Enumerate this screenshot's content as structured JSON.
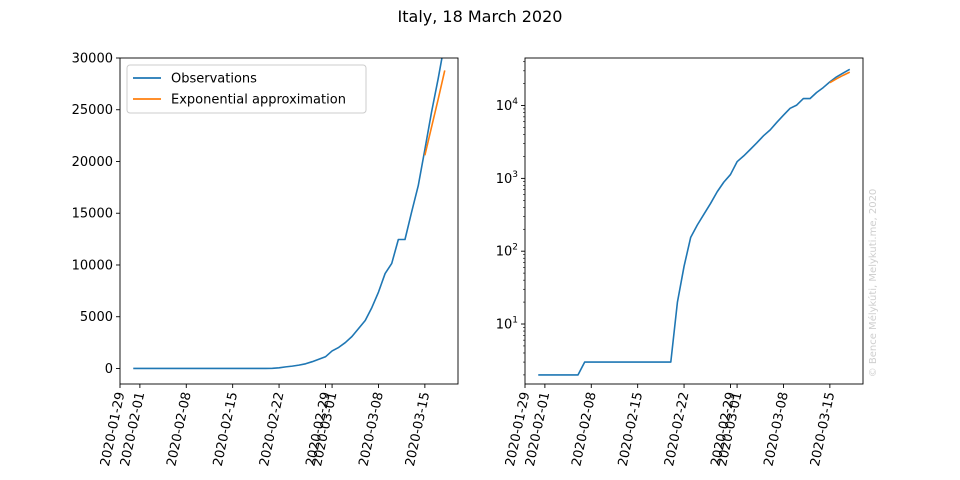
{
  "figure": {
    "title": "Italy, 18 March 2020",
    "credit": "© Bence Mélykúti, Melykuti.me, 2020"
  },
  "colors": {
    "observations": "#1f77b4",
    "exponential": "#ff7f0e"
  },
  "chart_data": [
    {
      "type": "line",
      "yscale": "linear",
      "title": "",
      "xlabel": "",
      "ylabel": "",
      "xlim": [
        "2020-01-29",
        "2020-03-20"
      ],
      "ylim": [
        -1500,
        30000
      ],
      "yticks": [
        0,
        5000,
        10000,
        15000,
        20000,
        25000,
        30000
      ],
      "ytick_labels": [
        "0",
        "5000",
        "10000",
        "15000",
        "20000",
        "25000",
        "30000"
      ],
      "xtick_labels": [
        "2020-01-29",
        "2020-02-01",
        "2020-02-08",
        "2020-02-15",
        "2020-02-22",
        "2020-02-29",
        "2020-03-01",
        "2020-03-08",
        "2020-03-15"
      ],
      "grid": false,
      "legend": {
        "position": "top-left",
        "entries": [
          "Observations",
          "Exponential approximation"
        ]
      },
      "series": [
        {
          "name": "Observations",
          "x": [
            "2020-01-31",
            "2020-02-01",
            "2020-02-02",
            "2020-02-03",
            "2020-02-04",
            "2020-02-05",
            "2020-02-06",
            "2020-02-07",
            "2020-02-08",
            "2020-02-09",
            "2020-02-10",
            "2020-02-11",
            "2020-02-12",
            "2020-02-13",
            "2020-02-14",
            "2020-02-15",
            "2020-02-16",
            "2020-02-17",
            "2020-02-18",
            "2020-02-19",
            "2020-02-20",
            "2020-02-21",
            "2020-02-22",
            "2020-02-23",
            "2020-02-24",
            "2020-02-25",
            "2020-02-26",
            "2020-02-27",
            "2020-02-28",
            "2020-02-29",
            "2020-03-01",
            "2020-03-02",
            "2020-03-03",
            "2020-03-04",
            "2020-03-05",
            "2020-03-06",
            "2020-03-07",
            "2020-03-08",
            "2020-03-09",
            "2020-03-10",
            "2020-03-11",
            "2020-03-12",
            "2020-03-13",
            "2020-03-14",
            "2020-03-15",
            "2020-03-16",
            "2020-03-17",
            "2020-03-18"
          ],
          "y": [
            2,
            2,
            2,
            2,
            2,
            2,
            2,
            3,
            3,
            3,
            3,
            3,
            3,
            3,
            3,
            3,
            3,
            3,
            3,
            3,
            3,
            20,
            62,
            155,
            229,
            322,
            453,
            655,
            888,
            1128,
            1694,
            2036,
            2502,
            3089,
            3858,
            4636,
            5883,
            7375,
            9172,
            10149,
            12462,
            12462,
            15113,
            17660,
            21157,
            24747,
            27980,
            31506
          ]
        },
        {
          "name": "Exponential approximation",
          "x": [
            "2020-03-15",
            "2020-03-16",
            "2020-03-17",
            "2020-03-18"
          ],
          "y": [
            20600,
            23300,
            26000,
            28800
          ]
        }
      ]
    },
    {
      "type": "line",
      "yscale": "log",
      "title": "",
      "xlabel": "",
      "ylabel": "",
      "xlim": [
        "2020-01-29",
        "2020-03-20"
      ],
      "ylim": [
        1.5,
        45000
      ],
      "yticks": [
        10,
        100,
        1000,
        10000
      ],
      "ytick_labels": [
        {
          "base": "10",
          "exp": "1"
        },
        {
          "base": "10",
          "exp": "2"
        },
        {
          "base": "10",
          "exp": "3"
        },
        {
          "base": "10",
          "exp": "4"
        }
      ],
      "xtick_labels": [
        "2020-01-29",
        "2020-02-01",
        "2020-02-08",
        "2020-02-15",
        "2020-02-22",
        "2020-02-29",
        "2020-03-01",
        "2020-03-08",
        "2020-03-15"
      ],
      "grid": false,
      "legend": null,
      "series": [
        {
          "name": "Observations",
          "x": [
            "2020-01-31",
            "2020-02-01",
            "2020-02-02",
            "2020-02-03",
            "2020-02-04",
            "2020-02-05",
            "2020-02-06",
            "2020-02-07",
            "2020-02-08",
            "2020-02-09",
            "2020-02-10",
            "2020-02-11",
            "2020-02-12",
            "2020-02-13",
            "2020-02-14",
            "2020-02-15",
            "2020-02-16",
            "2020-02-17",
            "2020-02-18",
            "2020-02-19",
            "2020-02-20",
            "2020-02-21",
            "2020-02-22",
            "2020-02-23",
            "2020-02-24",
            "2020-02-25",
            "2020-02-26",
            "2020-02-27",
            "2020-02-28",
            "2020-02-29",
            "2020-03-01",
            "2020-03-02",
            "2020-03-03",
            "2020-03-04",
            "2020-03-05",
            "2020-03-06",
            "2020-03-07",
            "2020-03-08",
            "2020-03-09",
            "2020-03-10",
            "2020-03-11",
            "2020-03-12",
            "2020-03-13",
            "2020-03-14",
            "2020-03-15",
            "2020-03-16",
            "2020-03-17",
            "2020-03-18"
          ],
          "y": [
            2,
            2,
            2,
            2,
            2,
            2,
            2,
            3,
            3,
            3,
            3,
            3,
            3,
            3,
            3,
            3,
            3,
            3,
            3,
            3,
            3,
            20,
            62,
            155,
            229,
            322,
            453,
            655,
            888,
            1128,
            1694,
            2036,
            2502,
            3089,
            3858,
            4636,
            5883,
            7375,
            9172,
            10149,
            12462,
            12462,
            15113,
            17660,
            21157,
            24747,
            27980,
            31506
          ]
        },
        {
          "name": "Exponential approximation",
          "x": [
            "2020-03-15",
            "2020-03-16",
            "2020-03-17",
            "2020-03-18"
          ],
          "y": [
            20600,
            23300,
            26000,
            28800
          ]
        }
      ]
    }
  ]
}
